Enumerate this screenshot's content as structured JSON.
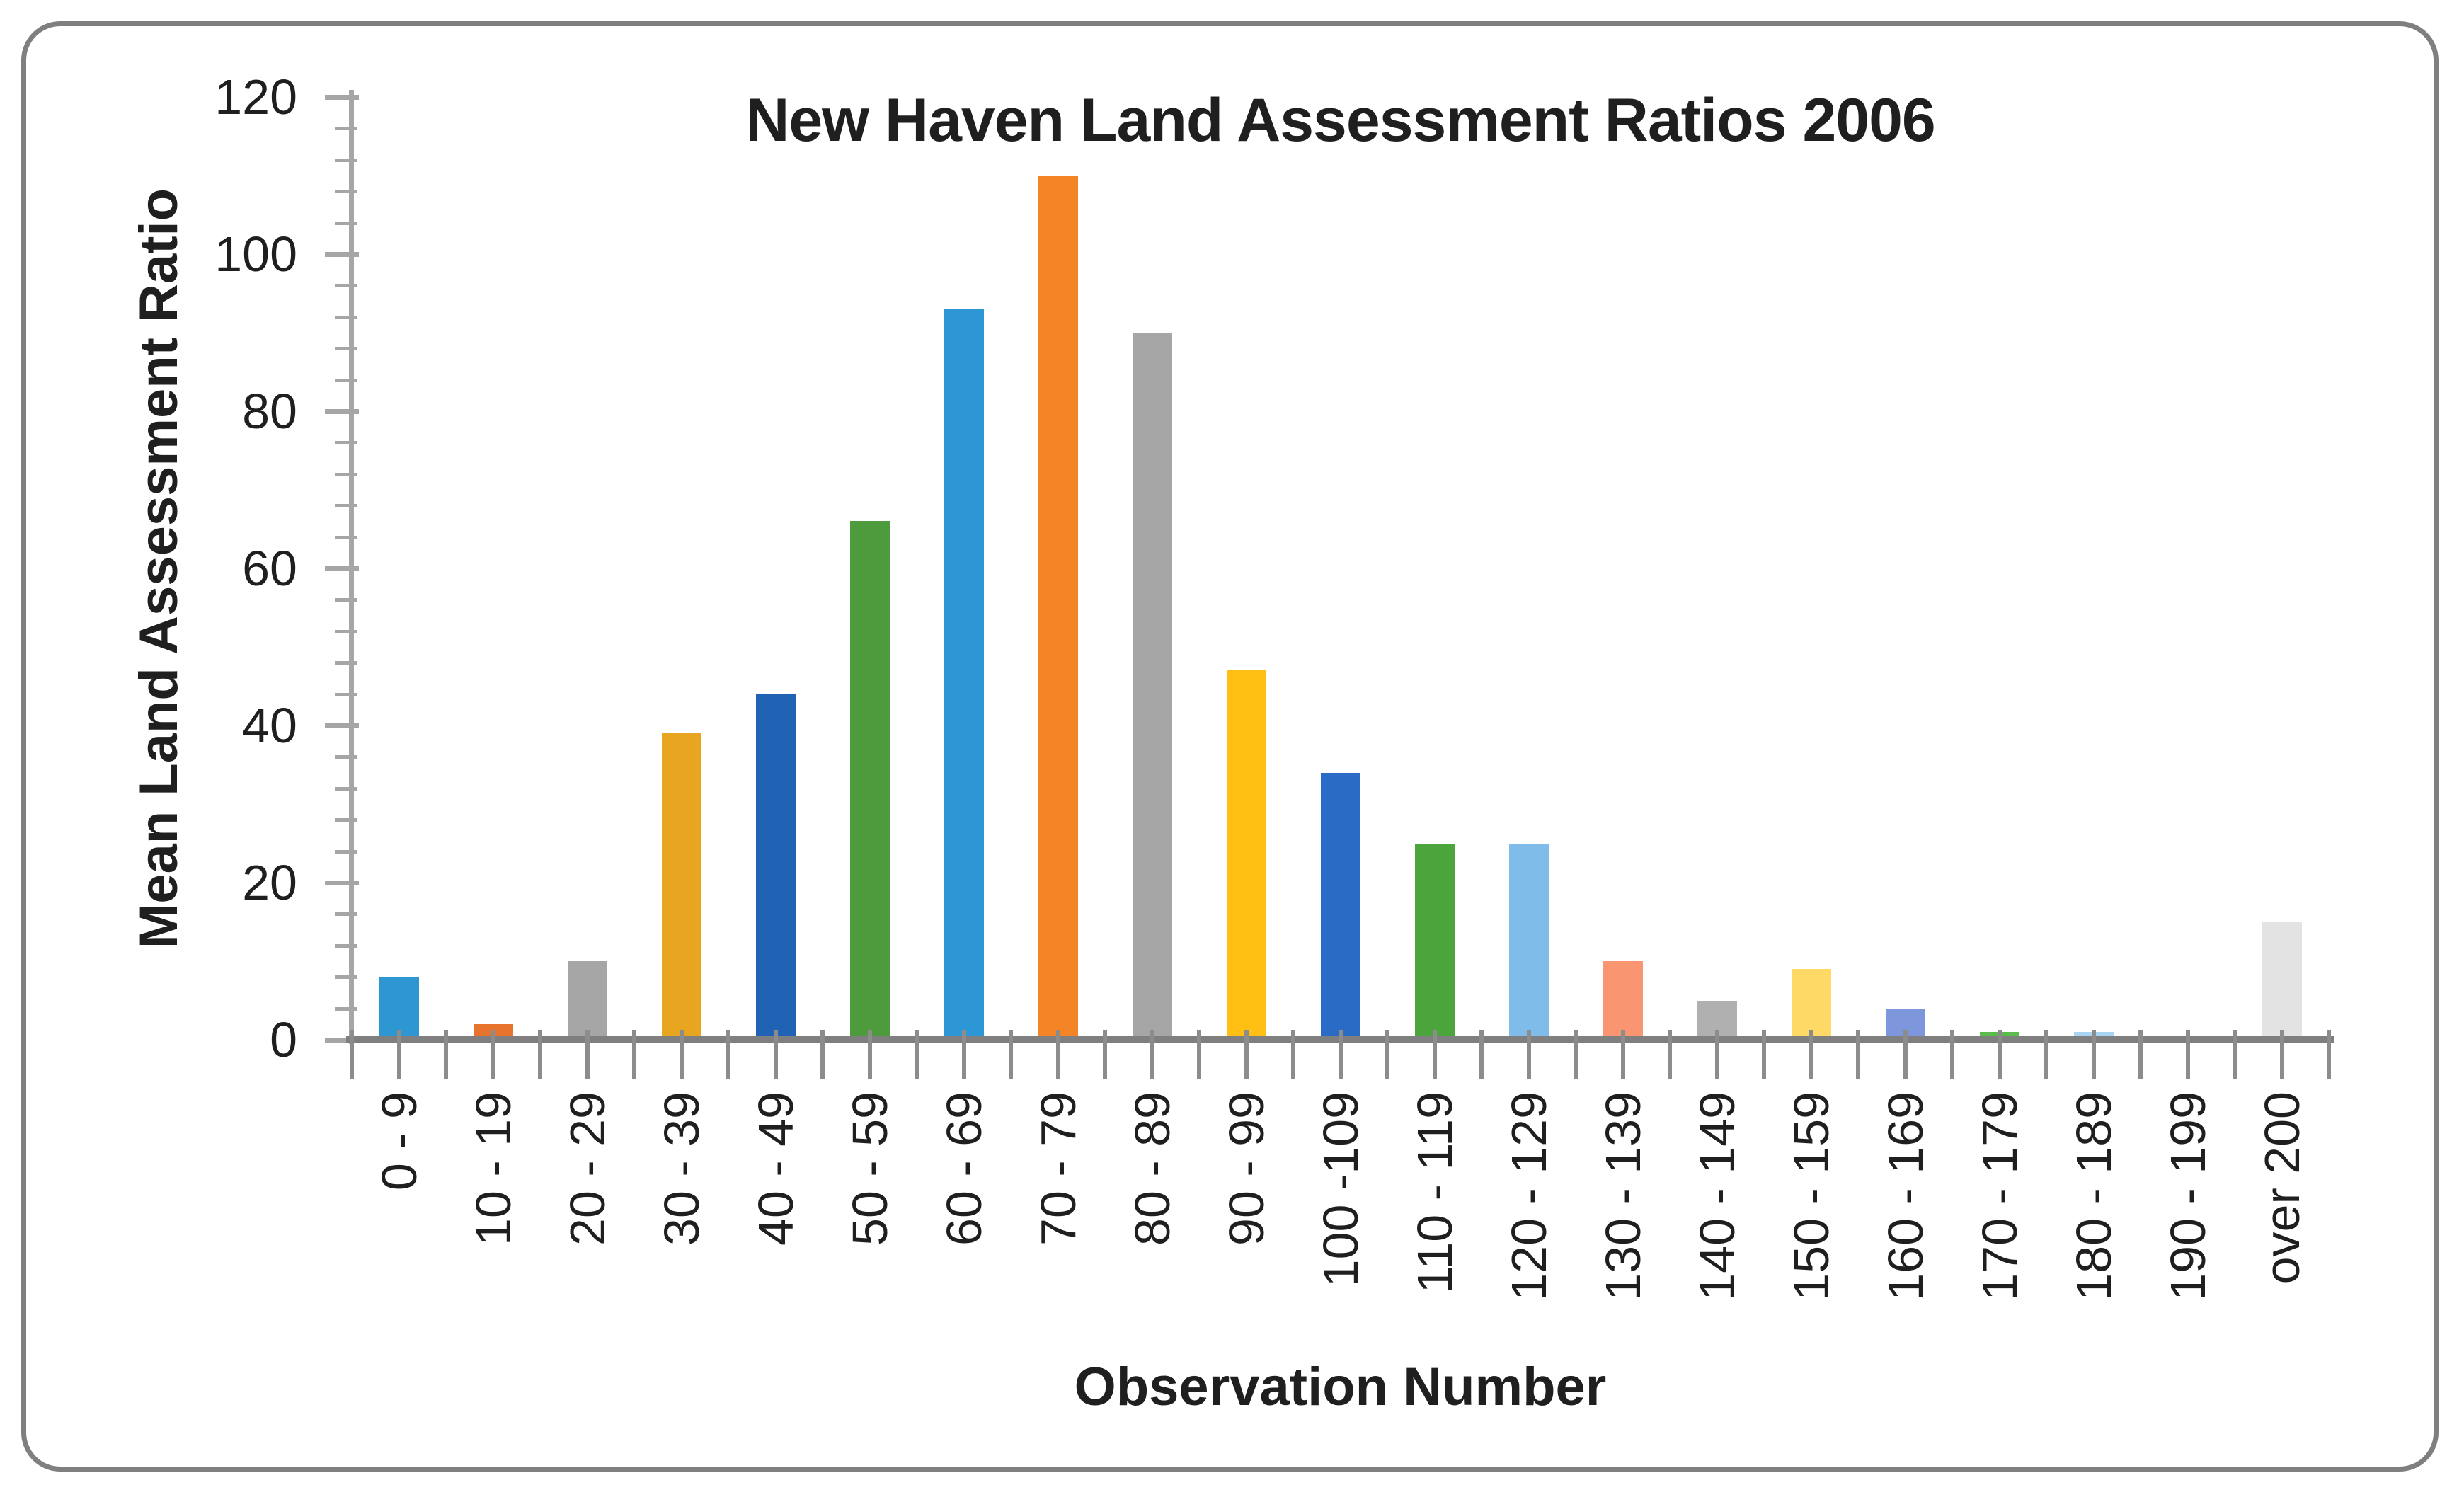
{
  "frame": {
    "background": "#FFFFFF",
    "border_color": "#7F7F7F"
  },
  "chart_data": {
    "type": "bar",
    "title": "New Haven Land Assessment Ratios 2006",
    "xlabel": "Observation Number",
    "ylabel": "Mean Land Assessment Ratio",
    "ylim": [
      0,
      120
    ],
    "y_major_step": 20,
    "y_minor_step": 4,
    "y_tick_labels": [
      "0",
      "20",
      "40",
      "60",
      "80",
      "100",
      "120"
    ],
    "grid": false,
    "legend": false,
    "categories": [
      "0 - 9",
      "10 - 19",
      "20 - 29",
      "30 - 39",
      "40 - 49",
      "50 - 59",
      "60 - 69",
      "70 - 79",
      "80 - 89",
      "90 - 99",
      "100 -109",
      "110 - 119",
      "120 - 129",
      "130 - 139",
      "140 - 149",
      "150 - 159",
      "160 - 169",
      "170 - 179",
      "180 - 189",
      "190 - 199",
      "over 200"
    ],
    "values": [
      8,
      2,
      10,
      39,
      44,
      66,
      93,
      110,
      90,
      47,
      34,
      25,
      25,
      10,
      5,
      9,
      4,
      1,
      1,
      0,
      15
    ],
    "bar_colors": [
      "#2E96D1",
      "#E8732C",
      "#A6A6A6",
      "#E7A520",
      "#2062B4",
      "#4D9B3D",
      "#2D96D5",
      "#F58427",
      "#A6A6A6",
      "#FFC013",
      "#2A6CC5",
      "#4BA53C",
      "#7FBCE9",
      "#F99570",
      "#B0B0B0",
      "#FFD966",
      "#7E96DC",
      "#5BBB4D",
      "#A9D4F3",
      "#D9D9D9",
      "#E3E3E3"
    ],
    "text_color": "#1F1F1F",
    "axis_color": "#A6A6A6",
    "tick_color": "#8C8C8C",
    "baseline_color": "#7F7F7F"
  }
}
